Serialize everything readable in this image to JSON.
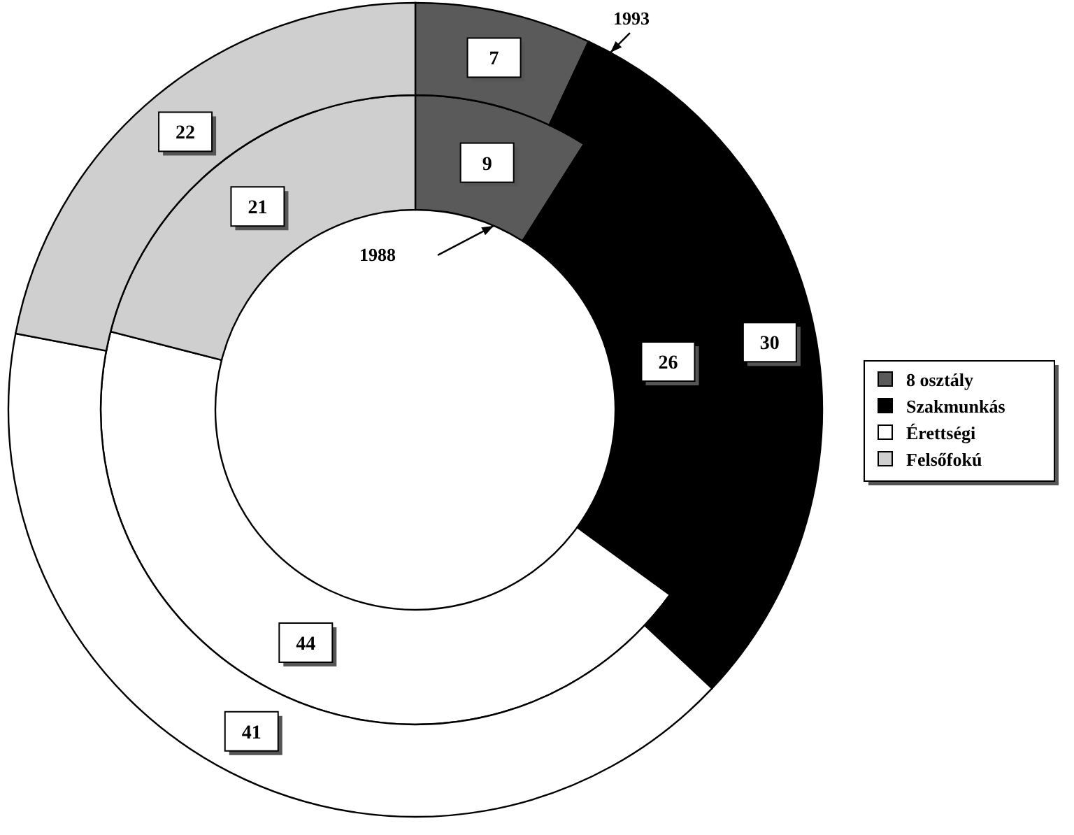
{
  "chart_data": {
    "type": "donut",
    "categories": [
      "8 osztály",
      "Szakmunkás",
      "Érettségi",
      "Felsőfokú"
    ],
    "colors": [
      "#5a5a5a",
      "#000000",
      "#ffffff",
      "#cfcfcf"
    ],
    "series": [
      {
        "name": "1988",
        "values": [
          9,
          26,
          44,
          21
        ]
      },
      {
        "name": "1993",
        "values": [
          7,
          30,
          41,
          22
        ]
      }
    ],
    "data_labels": true,
    "legend": "right"
  }
}
